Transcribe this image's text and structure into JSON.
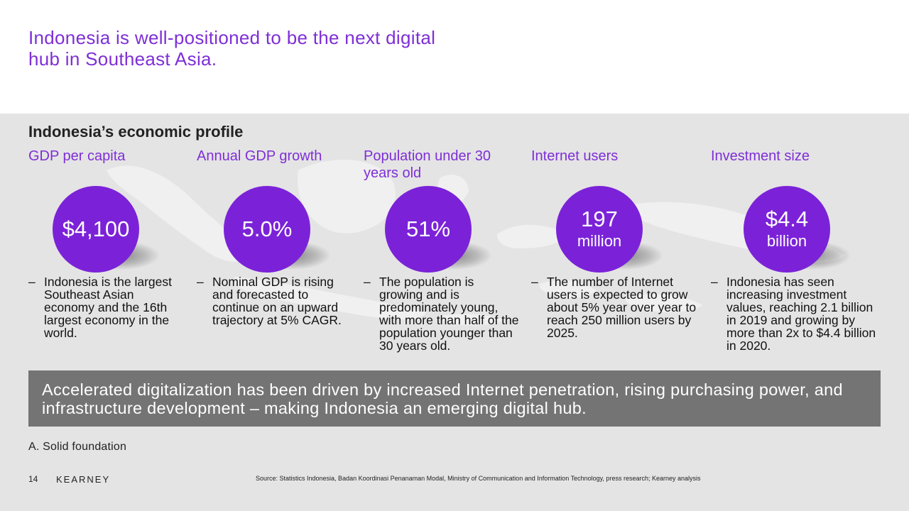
{
  "title": "Indonesia is well-positioned to be the next digital hub in Southeast Asia.",
  "section_heading": "Indonesia’s economic profile",
  "colors": {
    "accent": "#7e2fd6",
    "circle": "#7b22d8",
    "banner": "#747474",
    "panel": "#e4e4e4"
  },
  "metrics": [
    {
      "label": "GDP per capita",
      "value": "$4,100",
      "unit": "",
      "bullet": "Indonesia is the largest Southeast Asian economy and the 16th largest economy in the world."
    },
    {
      "label": "Annual GDP growth",
      "value": "5.0%",
      "unit": "",
      "bullet": "Nominal GDP is rising and forecasted to continue on an upward trajectory at 5% CAGR."
    },
    {
      "label": "Population under 30 years old",
      "value": "51%",
      "unit": "",
      "bullet": "The population is growing and is predominately young, with more than half of the population younger than 30 years old."
    },
    {
      "label": "Internet users",
      "value": "197",
      "unit": "million",
      "bullet": "The number of Internet users is expected to grow about 5% year over year to reach 250 million users by 2025."
    },
    {
      "label": "Investment size",
      "value": "$4.4",
      "unit": "billion",
      "bullet": "Indonesia has seen increasing investment values, reaching 2.1 billion in 2019 and growing by more than 2x to $4.4 billion in 2020."
    }
  ],
  "bullet_marker": "–",
  "banner_text": "Accelerated digitalization has been driven by increased Internet penetration, rising purchasing power, and infrastructure development – making Indonesia an emerging digital hub.",
  "foundation_label": "A. Solid foundation",
  "page_number": "14",
  "brand": "KEARNEY",
  "source": "Source: Statistics Indonesia, Badan Koordinasi Penanaman Modal, Ministry of Communication and Information Technology, press research; Kearney analysis"
}
